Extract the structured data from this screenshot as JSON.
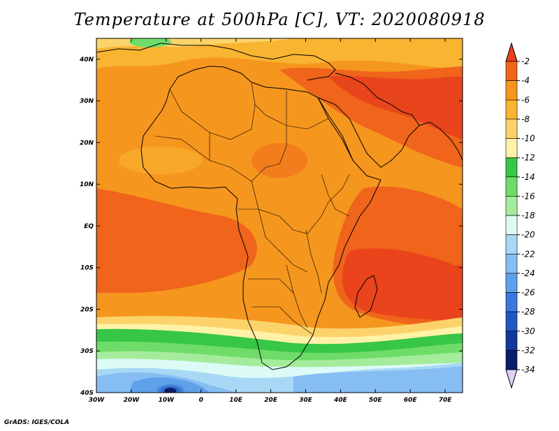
{
  "title": "Temperature at 500hPa [C], VT: 2020080918",
  "footer": "GrADS: IGES/COLA",
  "map": {
    "lon_range": [
      -30,
      75
    ],
    "lat_range": [
      -40,
      45
    ],
    "lon_ticks": [
      "30W",
      "20W",
      "10W",
      "0",
      "10E",
      "20E",
      "30E",
      "40E",
      "50E",
      "60E",
      "70E"
    ],
    "lat_ticks": [
      "40N",
      "30N",
      "20N",
      "10N",
      "EQ",
      "10S",
      "20S",
      "30S",
      "40S"
    ],
    "variable": "temperature_500hPa",
    "units": "C"
  },
  "colorbar": {
    "levels": [
      "-2",
      "-4",
      "-6",
      "-8",
      "-10",
      "-12",
      "-14",
      "-16",
      "-18",
      "-20",
      "-22",
      "-24",
      "-26",
      "-28",
      "-30",
      "-32",
      "-34"
    ],
    "colors": [
      "#e8401c",
      "#f0641c",
      "#f5961e",
      "#f9b431",
      "#fcd36b",
      "#fff2a8",
      "#37c645",
      "#6fdc69",
      "#a4ec9c",
      "#dcfbf6",
      "#a8d8f5",
      "#86bef3",
      "#5ea0ea",
      "#3c78dc",
      "#2056c4",
      "#12389c",
      "#0b1e6e",
      "#dcd2fa"
    ]
  }
}
